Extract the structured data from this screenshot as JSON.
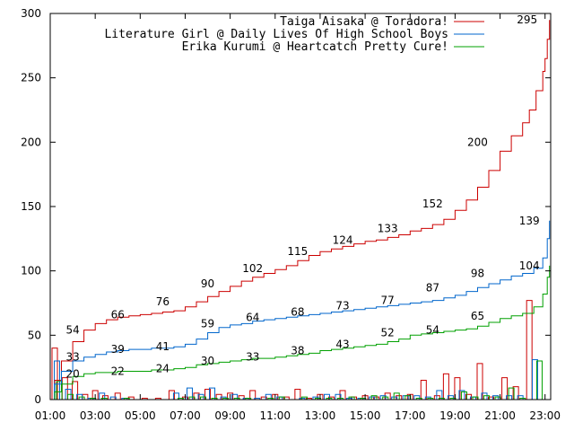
{
  "chart_data": {
    "type": "line",
    "title": "",
    "xlabel": "",
    "ylabel": "",
    "xlim": [
      1,
      23.25
    ],
    "ylim": [
      0,
      300
    ],
    "x_ticks": [
      {
        "value": 1,
        "label": "01:00"
      },
      {
        "value": 3,
        "label": "03:00"
      },
      {
        "value": 5,
        "label": "05:00"
      },
      {
        "value": 7,
        "label": "07:00"
      },
      {
        "value": 9,
        "label": "09:00"
      },
      {
        "value": 11,
        "label": "11:00"
      },
      {
        "value": 13,
        "label": "13:00"
      },
      {
        "value": 15,
        "label": "15:00"
      },
      {
        "value": 17,
        "label": "17:00"
      },
      {
        "value": 19,
        "label": "19:00"
      },
      {
        "value": 21,
        "label": "21:00"
      },
      {
        "value": 23,
        "label": "23:00"
      }
    ],
    "y_ticks": [
      {
        "value": 0,
        "label": "0"
      },
      {
        "value": 50,
        "label": "50"
      },
      {
        "value": 100,
        "label": "100"
      },
      {
        "value": 150,
        "label": "150"
      },
      {
        "value": 200,
        "label": "200"
      },
      {
        "value": 250,
        "label": "250"
      },
      {
        "value": 300,
        "label": "300"
      }
    ],
    "grid": false,
    "legend_position": "top-right",
    "series": [
      {
        "name": "Taiga Aisaka @ Toradora!",
        "color": "#cc0000",
        "x": [
          1,
          1.2,
          1.5,
          2,
          2.5,
          3,
          3.5,
          4,
          4.5,
          5,
          5.5,
          6,
          6.5,
          7,
          7.5,
          8,
          8.5,
          9,
          9.5,
          10,
          10.5,
          11,
          11.5,
          12,
          12.5,
          13,
          13.5,
          14,
          14.5,
          15,
          15.5,
          16,
          16.5,
          17,
          17.5,
          18,
          18.5,
          19,
          19.5,
          20,
          20.5,
          21,
          21.5,
          22,
          22.3,
          22.6,
          22.9,
          23,
          23.1,
          23.2
        ],
        "values": [
          0,
          15,
          30,
          45,
          54,
          59,
          62,
          64,
          65,
          66,
          67,
          68,
          69,
          72,
          76,
          80,
          84,
          88,
          92,
          95,
          98,
          101,
          104,
          108,
          112,
          115,
          117,
          119,
          121,
          123,
          124,
          126,
          128,
          131,
          133,
          136,
          140,
          147,
          155,
          165,
          178,
          193,
          205,
          215,
          225,
          240,
          255,
          265,
          280,
          295
        ],
        "labels": [
          {
            "x": 2,
            "y": 54,
            "text": "54"
          },
          {
            "x": 4,
            "y": 66,
            "text": "66"
          },
          {
            "x": 6,
            "y": 76,
            "text": "76"
          },
          {
            "x": 8,
            "y": 90,
            "text": "90"
          },
          {
            "x": 10,
            "y": 102,
            "text": "102"
          },
          {
            "x": 12,
            "y": 115,
            "text": "115"
          },
          {
            "x": 14,
            "y": 124,
            "text": "124"
          },
          {
            "x": 16,
            "y": 133,
            "text": "133"
          },
          {
            "x": 18,
            "y": 152,
            "text": "152"
          },
          {
            "x": 20,
            "y": 200,
            "text": "200"
          },
          {
            "x": 22.2,
            "y": 295,
            "text": "295"
          }
        ],
        "bars": [
          {
            "x": 1.2,
            "value": 40
          },
          {
            "x": 1.65,
            "value": 17
          },
          {
            "x": 2.1,
            "value": 14
          },
          {
            "x": 2.55,
            "value": 4
          },
          {
            "x": 3,
            "value": 7
          },
          {
            "x": 3.45,
            "value": 3
          },
          {
            "x": 4,
            "value": 5
          },
          {
            "x": 4.6,
            "value": 2
          },
          {
            "x": 5.2,
            "value": 1
          },
          {
            "x": 5.8,
            "value": 1
          },
          {
            "x": 6.4,
            "value": 7
          },
          {
            "x": 7,
            "value": 2
          },
          {
            "x": 7.5,
            "value": 5
          },
          {
            "x": 8,
            "value": 8
          },
          {
            "x": 8.5,
            "value": 4
          },
          {
            "x": 9,
            "value": 5
          },
          {
            "x": 9.5,
            "value": 3
          },
          {
            "x": 10,
            "value": 7
          },
          {
            "x": 10.5,
            "value": 2
          },
          {
            "x": 11,
            "value": 4
          },
          {
            "x": 11.5,
            "value": 2
          },
          {
            "x": 12,
            "value": 8
          },
          {
            "x": 12.5,
            "value": 1
          },
          {
            "x": 13,
            "value": 4
          },
          {
            "x": 13.5,
            "value": 2
          },
          {
            "x": 14,
            "value": 7
          },
          {
            "x": 14.5,
            "value": 2
          },
          {
            "x": 15,
            "value": 3
          },
          {
            "x": 15.5,
            "value": 2
          },
          {
            "x": 16,
            "value": 5
          },
          {
            "x": 16.5,
            "value": 3
          },
          {
            "x": 17,
            "value": 4
          },
          {
            "x": 17.6,
            "value": 15
          },
          {
            "x": 18.2,
            "value": 3
          },
          {
            "x": 18.6,
            "value": 20
          },
          {
            "x": 19.1,
            "value": 17
          },
          {
            "x": 19.6,
            "value": 4
          },
          {
            "x": 20.1,
            "value": 28
          },
          {
            "x": 20.6,
            "value": 2
          },
          {
            "x": 21.2,
            "value": 17
          },
          {
            "x": 21.7,
            "value": 10
          },
          {
            "x": 22.3,
            "value": 77
          }
        ]
      },
      {
        "name": "Literature Girl @ Daily Lives Of High School Boys",
        "color": "#0066cc",
        "x": [
          1,
          1.2,
          1.5,
          2,
          2.5,
          3,
          3.5,
          4,
          4.5,
          5,
          5.5,
          6,
          6.5,
          7,
          7.5,
          8,
          8.5,
          9,
          9.5,
          10,
          10.5,
          11,
          11.5,
          12,
          12.5,
          13,
          13.5,
          14,
          14.5,
          15,
          15.5,
          16,
          16.5,
          17,
          17.5,
          18,
          18.5,
          19,
          19.5,
          20,
          20.5,
          21,
          21.5,
          22,
          22.5,
          22.9,
          23.1,
          23.2
        ],
        "values": [
          0,
          12,
          22,
          30,
          33,
          35,
          37,
          38,
          39,
          39,
          40,
          40,
          41,
          43,
          47,
          52,
          56,
          58,
          59,
          61,
          62,
          63,
          64,
          65,
          66,
          67,
          68,
          69,
          70,
          71,
          72,
          73,
          74,
          75,
          76,
          77,
          79,
          81,
          84,
          87,
          90,
          93,
          96,
          98,
          102,
          110,
          125,
          139
        ],
        "labels": [
          {
            "x": 2,
            "y": 33,
            "text": "33"
          },
          {
            "x": 4,
            "y": 39,
            "text": "39"
          },
          {
            "x": 6,
            "y": 41,
            "text": "41"
          },
          {
            "x": 8,
            "y": 59,
            "text": "59"
          },
          {
            "x": 10,
            "y": 64,
            "text": "64"
          },
          {
            "x": 12,
            "y": 68,
            "text": "68"
          },
          {
            "x": 14,
            "y": 73,
            "text": "73"
          },
          {
            "x": 16,
            "y": 77,
            "text": "77"
          },
          {
            "x": 18,
            "y": 87,
            "text": "87"
          },
          {
            "x": 20,
            "y": 98,
            "text": "98"
          },
          {
            "x": 22.3,
            "y": 139,
            "text": "139"
          }
        ],
        "bars": [
          {
            "x": 1.3,
            "value": 30
          },
          {
            "x": 1.8,
            "value": 8
          },
          {
            "x": 2.3,
            "value": 4
          },
          {
            "x": 2.8,
            "value": 1
          },
          {
            "x": 3.3,
            "value": 5
          },
          {
            "x": 3.8,
            "value": 2
          },
          {
            "x": 4.3,
            "value": 1
          },
          {
            "x": 6.6,
            "value": 5
          },
          {
            "x": 7.2,
            "value": 9
          },
          {
            "x": 7.7,
            "value": 4
          },
          {
            "x": 8.2,
            "value": 9
          },
          {
            "x": 8.7,
            "value": 2
          },
          {
            "x": 9.2,
            "value": 4
          },
          {
            "x": 9.7,
            "value": 1
          },
          {
            "x": 10.2,
            "value": 1
          },
          {
            "x": 10.7,
            "value": 4
          },
          {
            "x": 11.2,
            "value": 2
          },
          {
            "x": 12.2,
            "value": 1
          },
          {
            "x": 12.8,
            "value": 2
          },
          {
            "x": 13.3,
            "value": 4
          },
          {
            "x": 13.8,
            "value": 4
          },
          {
            "x": 14.3,
            "value": 1
          },
          {
            "x": 14.8,
            "value": 1
          },
          {
            "x": 15.3,
            "value": 2
          },
          {
            "x": 15.8,
            "value": 3
          },
          {
            "x": 16.3,
            "value": 2
          },
          {
            "x": 16.8,
            "value": 3
          },
          {
            "x": 17.3,
            "value": 3
          },
          {
            "x": 17.8,
            "value": 2
          },
          {
            "x": 18.3,
            "value": 7
          },
          {
            "x": 18.8,
            "value": 3
          },
          {
            "x": 19.3,
            "value": 7
          },
          {
            "x": 19.8,
            "value": 2
          },
          {
            "x": 20.3,
            "value": 5
          },
          {
            "x": 20.8,
            "value": 3
          },
          {
            "x": 21.4,
            "value": 3
          },
          {
            "x": 21.9,
            "value": 3
          },
          {
            "x": 22.55,
            "value": 31
          }
        ]
      },
      {
        "name": "Erika Kurumi @ Heartcatch Pretty Cure!",
        "color": "#00a000",
        "x": [
          1,
          1.2,
          1.5,
          2,
          2.5,
          3,
          3.5,
          4,
          4.5,
          5,
          5.5,
          6,
          6.5,
          7,
          7.5,
          8,
          8.5,
          9,
          9.5,
          10,
          10.5,
          11,
          11.5,
          12,
          12.5,
          13,
          13.5,
          14,
          14.5,
          15,
          15.5,
          16,
          16.5,
          17,
          17.5,
          18,
          18.5,
          19,
          19.5,
          20,
          20.5,
          21,
          21.5,
          22,
          22.5,
          22.9,
          23.1,
          23.2
        ],
        "values": [
          0,
          6,
          12,
          18,
          20,
          21,
          21,
          22,
          22,
          22,
          23,
          23,
          24,
          25,
          27,
          28,
          29,
          30,
          31,
          32,
          32,
          33,
          34,
          35,
          36,
          38,
          39,
          40,
          41,
          42,
          43,
          45,
          47,
          50,
          51,
          52,
          53,
          54,
          55,
          57,
          60,
          63,
          65,
          67,
          72,
          82,
          95,
          104
        ],
        "labels": [
          {
            "x": 2,
            "y": 20,
            "text": "20"
          },
          {
            "x": 4,
            "y": 22,
            "text": "22"
          },
          {
            "x": 6,
            "y": 24,
            "text": "24"
          },
          {
            "x": 8,
            "y": 30,
            "text": "30"
          },
          {
            "x": 10,
            "y": 33,
            "text": "33"
          },
          {
            "x": 12,
            "y": 38,
            "text": "38"
          },
          {
            "x": 14,
            "y": 43,
            "text": "43"
          },
          {
            "x": 16,
            "y": 52,
            "text": "52"
          },
          {
            "x": 18,
            "y": 54,
            "text": "54"
          },
          {
            "x": 20,
            "y": 65,
            "text": "65"
          },
          {
            "x": 22.3,
            "y": 104,
            "text": "104"
          }
        ],
        "bars": [
          {
            "x": 1.4,
            "value": 14
          },
          {
            "x": 1.9,
            "value": 4
          },
          {
            "x": 2.4,
            "value": 2
          },
          {
            "x": 2.9,
            "value": 1
          },
          {
            "x": 3.4,
            "value": 1
          },
          {
            "x": 4.4,
            "value": 1
          },
          {
            "x": 6.8,
            "value": 1
          },
          {
            "x": 7.3,
            "value": 2
          },
          {
            "x": 7.8,
            "value": 2
          },
          {
            "x": 8.3,
            "value": 1
          },
          {
            "x": 8.8,
            "value": 1
          },
          {
            "x": 9.3,
            "value": 1
          },
          {
            "x": 9.8,
            "value": 1
          },
          {
            "x": 10.8,
            "value": 1
          },
          {
            "x": 11.3,
            "value": 2
          },
          {
            "x": 12.3,
            "value": 2
          },
          {
            "x": 12.9,
            "value": 1
          },
          {
            "x": 13.4,
            "value": 1
          },
          {
            "x": 13.9,
            "value": 1
          },
          {
            "x": 14.4,
            "value": 2
          },
          {
            "x": 14.9,
            "value": 1
          },
          {
            "x": 15.4,
            "value": 3
          },
          {
            "x": 15.9,
            "value": 2
          },
          {
            "x": 16.4,
            "value": 5
          },
          {
            "x": 16.9,
            "value": 3
          },
          {
            "x": 17.4,
            "value": 1
          },
          {
            "x": 17.9,
            "value": 1
          },
          {
            "x": 18.4,
            "value": 1
          },
          {
            "x": 18.9,
            "value": 1
          },
          {
            "x": 19.4,
            "value": 6
          },
          {
            "x": 19.9,
            "value": 2
          },
          {
            "x": 20.4,
            "value": 3
          },
          {
            "x": 20.9,
            "value": 2
          },
          {
            "x": 21.5,
            "value": 9
          },
          {
            "x": 22.0,
            "value": 1
          },
          {
            "x": 22.75,
            "value": 30
          }
        ]
      }
    ]
  }
}
